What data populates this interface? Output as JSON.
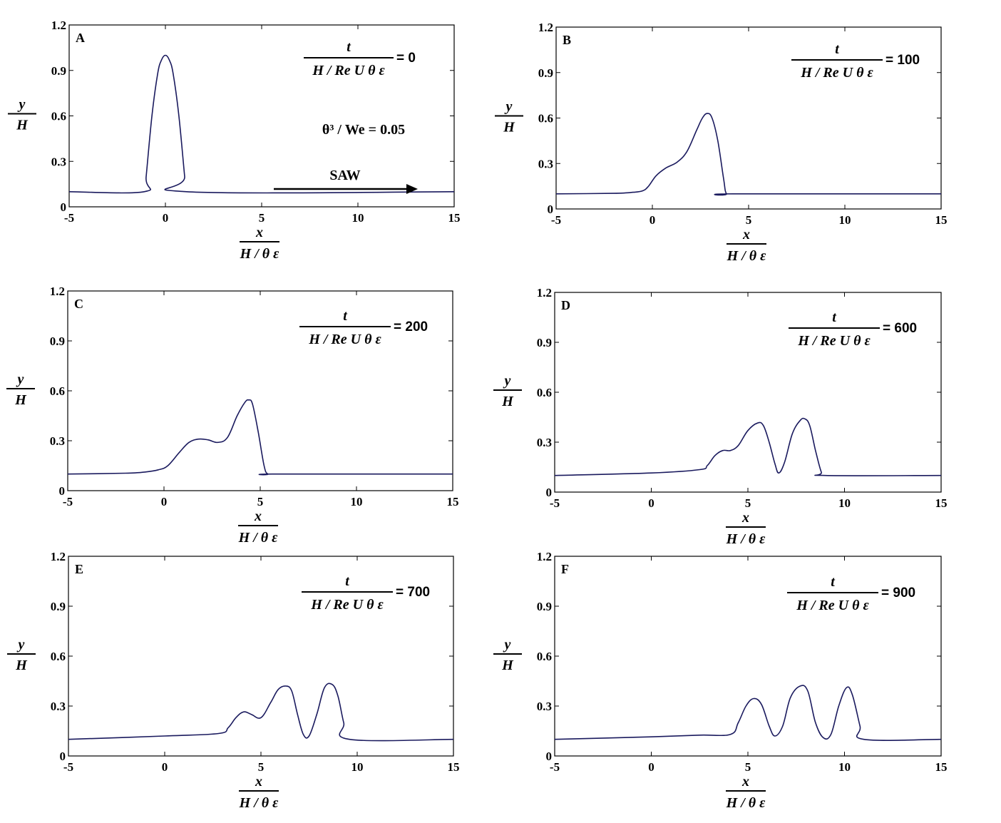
{
  "axis_labels": {
    "x_num": "x",
    "x_den": "H / θ ε",
    "y_num": "y",
    "y_den": "H"
  },
  "time_label": {
    "num": "t",
    "den": "H / Re U θ ε"
  },
  "annotation_param": "θ³ / We = 0.05",
  "annotation_arrow": "SAW",
  "chart_data": [
    {
      "type": "line",
      "panel": "A",
      "time_value": "=   0",
      "xlim": [
        -5,
        15
      ],
      "ylim": [
        0,
        1.2
      ],
      "xticks": [
        "-5",
        "0",
        "5",
        "10",
        "15"
      ],
      "yticks": [
        "0",
        "0.3",
        "0.6",
        "0.9",
        "1.2"
      ],
      "x": [
        -5,
        -1.1,
        -1.0,
        -0.7,
        -0.4,
        -0.2,
        0,
        0.2,
        0.4,
        0.7,
        1.0,
        1.1,
        15
      ],
      "y": [
        0.1,
        0.1,
        0.2,
        0.6,
        0.88,
        0.97,
        1.0,
        0.97,
        0.88,
        0.6,
        0.2,
        0.1,
        0.1
      ]
    },
    {
      "type": "line",
      "panel": "B",
      "time_value": "= 100",
      "xlim": [
        -5,
        15
      ],
      "ylim": [
        0,
        1.2
      ],
      "xticks": [
        "-5",
        "0",
        "5",
        "10",
        "15"
      ],
      "yticks": [
        "0",
        "0.3",
        "0.6",
        "0.9",
        "1.2"
      ],
      "x": [
        -5,
        -2,
        -1,
        -0.5,
        -0.2,
        0.2,
        0.7,
        1.3,
        1.8,
        2.3,
        2.6,
        2.85,
        3.1,
        3.4,
        3.7,
        3.85,
        4.2,
        15
      ],
      "y": [
        0.1,
        0.103,
        0.11,
        0.12,
        0.15,
        0.22,
        0.27,
        0.31,
        0.38,
        0.52,
        0.6,
        0.63,
        0.6,
        0.45,
        0.2,
        0.1,
        0.1,
        0.1
      ]
    },
    {
      "type": "line",
      "panel": "C",
      "time_value": "= 200",
      "xlim": [
        -5,
        15
      ],
      "ylim": [
        0,
        1.2
      ],
      "xticks": [
        "-5",
        "0",
        "5",
        "10",
        "15"
      ],
      "yticks": [
        "0",
        "0.3",
        "0.6",
        "0.9",
        "1.2"
      ],
      "x": [
        -5,
        -2,
        -1,
        -0.3,
        0.2,
        0.8,
        1.3,
        1.8,
        2.3,
        2.8,
        3.3,
        3.8,
        4.2,
        4.4,
        4.6,
        4.9,
        5.2,
        5.4,
        5.8,
        15
      ],
      "y": [
        0.1,
        0.105,
        0.112,
        0.125,
        0.15,
        0.23,
        0.29,
        0.31,
        0.305,
        0.29,
        0.32,
        0.45,
        0.53,
        0.545,
        0.52,
        0.35,
        0.15,
        0.1,
        0.1,
        0.1
      ]
    },
    {
      "type": "line",
      "panel": "D",
      "time_value": "= 600",
      "xlim": [
        -5,
        15
      ],
      "ylim": [
        0,
        1.2
      ],
      "xticks": [
        "-5",
        "0",
        "5",
        "10",
        "15"
      ],
      "yticks": [
        "0",
        "0.3",
        "0.6",
        "0.9",
        "1.2"
      ],
      "x": [
        -5,
        0,
        2.5,
        2.9,
        3.3,
        3.7,
        4.1,
        4.5,
        5.0,
        5.5,
        5.8,
        6.1,
        6.4,
        6.6,
        6.9,
        7.3,
        7.7,
        7.95,
        8.2,
        8.5,
        8.8,
        9.0,
        15
      ],
      "y": [
        0.1,
        0.115,
        0.135,
        0.16,
        0.22,
        0.25,
        0.25,
        0.28,
        0.37,
        0.415,
        0.4,
        0.3,
        0.17,
        0.115,
        0.18,
        0.35,
        0.43,
        0.44,
        0.4,
        0.25,
        0.12,
        0.1,
        0.1
      ]
    },
    {
      "type": "line",
      "panel": "E",
      "time_value": "= 700",
      "xlim": [
        -5,
        15
      ],
      "ylim": [
        0,
        1.2
      ],
      "xticks": [
        "-5",
        "0",
        "5",
        "10",
        "15"
      ],
      "yticks": [
        "0",
        "0.3",
        "0.6",
        "0.9",
        "1.2"
      ],
      "x": [
        -5,
        0,
        2.8,
        3.3,
        3.7,
        4.1,
        4.5,
        5.0,
        5.5,
        5.9,
        6.3,
        6.6,
        6.9,
        7.2,
        7.5,
        7.9,
        8.3,
        8.7,
        9.0,
        9.3,
        9.6,
        15
      ],
      "y": [
        0.1,
        0.12,
        0.135,
        0.17,
        0.23,
        0.265,
        0.25,
        0.23,
        0.32,
        0.4,
        0.42,
        0.39,
        0.25,
        0.13,
        0.12,
        0.25,
        0.41,
        0.43,
        0.36,
        0.2,
        0.1,
        0.1
      ]
    },
    {
      "type": "line",
      "panel": "F",
      "time_value": "= 900",
      "xlim": [
        -5,
        15
      ],
      "ylim": [
        0,
        1.2
      ],
      "xticks": [
        "-5",
        "0",
        "5",
        "10",
        "15"
      ],
      "yticks": [
        "0",
        "0.3",
        "0.6",
        "0.9",
        "1.2"
      ],
      "x": [
        -5,
        0,
        2.5,
        4.1,
        4.5,
        4.9,
        5.3,
        5.7,
        6.1,
        6.4,
        6.8,
        7.2,
        7.7,
        8.1,
        8.5,
        8.9,
        9.3,
        9.7,
        10.1,
        10.4,
        10.8,
        11.0,
        15
      ],
      "y": [
        0.1,
        0.115,
        0.125,
        0.13,
        0.2,
        0.3,
        0.345,
        0.31,
        0.18,
        0.12,
        0.18,
        0.35,
        0.42,
        0.39,
        0.2,
        0.11,
        0.13,
        0.3,
        0.41,
        0.37,
        0.18,
        0.1,
        0.1
      ]
    }
  ]
}
